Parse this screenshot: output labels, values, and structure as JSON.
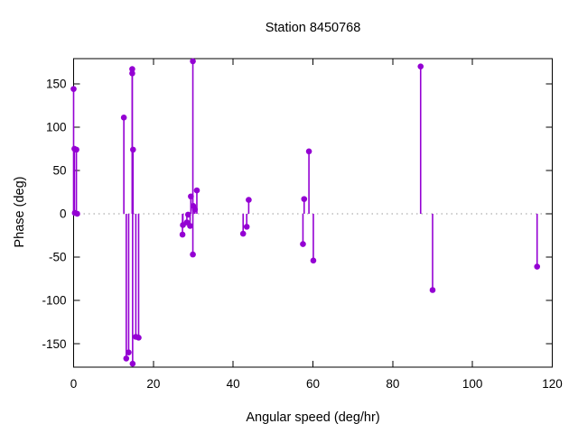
{
  "chart_data": {
    "type": "scatter",
    "style": "impulses+points",
    "title": "Station 8450768",
    "xlabel": "Angular speed (deg/hr)",
    "ylabel": "Phase (deg)",
    "xlim": [
      0,
      120
    ],
    "ylim": [
      -177,
      179
    ],
    "xticks": [
      0,
      20,
      40,
      60,
      80,
      100,
      120
    ],
    "yticks": [
      -150,
      -100,
      -50,
      0,
      50,
      100,
      150
    ],
    "grid": false,
    "legend": "none",
    "zero_line": {
      "show": true,
      "color": "#9a9a9a",
      "style": "dotted"
    },
    "series_color": "#9400d3",
    "points": [
      [
        0.0,
        144
      ],
      [
        0.2,
        75
      ],
      [
        0.7,
        74
      ],
      [
        0.3,
        1
      ],
      [
        0.9,
        0
      ],
      [
        12.6,
        111
      ],
      [
        13.2,
        -167
      ],
      [
        13.8,
        -160
      ],
      [
        14.7,
        167
      ],
      [
        14.7,
        162
      ],
      [
        14.8,
        -173
      ],
      [
        14.9,
        74
      ],
      [
        15.6,
        -142
      ],
      [
        16.3,
        -143
      ],
      [
        27.3,
        -24
      ],
      [
        27.4,
        -13
      ],
      [
        28.4,
        -10
      ],
      [
        28.7,
        -1
      ],
      [
        29.2,
        -14
      ],
      [
        29.4,
        20
      ],
      [
        29.9,
        176
      ],
      [
        29.9,
        -47
      ],
      [
        30.0,
        9
      ],
      [
        30.4,
        5
      ],
      [
        30.9,
        27
      ],
      [
        42.5,
        -23
      ],
      [
        43.4,
        -15
      ],
      [
        43.9,
        16
      ],
      [
        57.5,
        -35
      ],
      [
        57.8,
        17
      ],
      [
        59.0,
        72
      ],
      [
        60.1,
        -54
      ],
      [
        87.0,
        170
      ],
      [
        90.0,
        -88
      ],
      [
        116.2,
        -61
      ]
    ]
  }
}
